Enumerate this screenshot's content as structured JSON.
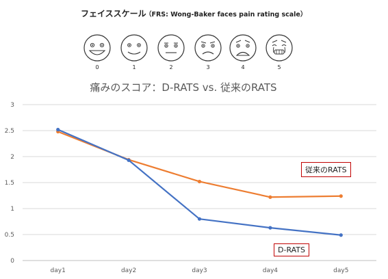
{
  "faces": {
    "title": "フェイススケール",
    "subtitle": "（FRS: Wong-Baker faces pain rating scale）",
    "labels": [
      "0",
      "1",
      "2",
      "3",
      "4",
      "5"
    ]
  },
  "chart_data": {
    "type": "line",
    "title": "痛みのスコア：D-RATS vs. 従来のRATS",
    "categories": [
      "day1",
      "day2",
      "day3",
      "day4",
      "day5"
    ],
    "ylim": [
      0,
      3
    ],
    "yticks": [
      "0",
      "0.5",
      "1",
      "1.5",
      "2",
      "2.5",
      "3"
    ],
    "grid": true,
    "series": [
      {
        "name": "D-RATS",
        "color": "#4472c4",
        "values": [
          2.52,
          1.93,
          0.8,
          0.63,
          0.49
        ]
      },
      {
        "name": "従来のRATS",
        "color": "#ed7d31",
        "values": [
          2.48,
          1.94,
          1.52,
          1.22,
          1.24
        ]
      }
    ],
    "annotations": {
      "orange_label": "従来のRATS",
      "blue_label": "D-RATS"
    }
  }
}
